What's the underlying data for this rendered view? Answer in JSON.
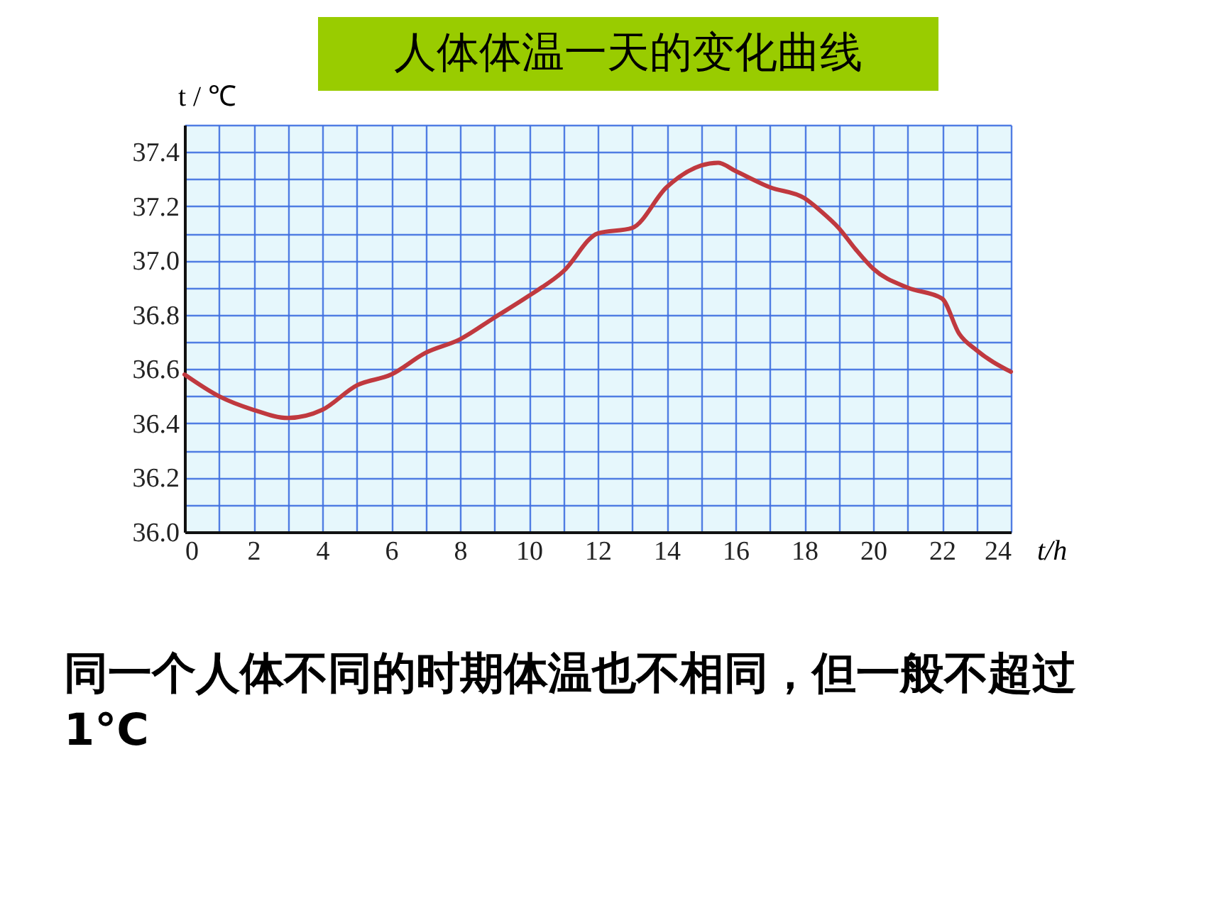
{
  "chart_data": {
    "type": "line",
    "title": "人体体温一天的变化曲线",
    "xlabel": "t/h",
    "ylabel": "t / ℃",
    "annotations": [
      "同一个人体不同的时期体温也不相同，但一般不超过1°C"
    ],
    "x": [
      0,
      1,
      2,
      3,
      4,
      5,
      6,
      7,
      8,
      9,
      10,
      11,
      12,
      13,
      14,
      15,
      15.5,
      16,
      17,
      18,
      18.5,
      19,
      19.5,
      20,
      21,
      22,
      22.5,
      23,
      24
    ],
    "series": [
      {
        "color": "#c0393f",
        "values": [
          36.58,
          36.5,
          36.45,
          36.42,
          36.45,
          36.54,
          36.58,
          36.66,
          36.71,
          36.79,
          36.87,
          36.96,
          37.1,
          37.12,
          37.27,
          37.35,
          37.36,
          37.33,
          37.27,
          37.23,
          37.18,
          37.12,
          37.04,
          36.97,
          36.9,
          36.86,
          36.73,
          36.67,
          36.59
        ]
      }
    ],
    "xlim": [
      0,
      24
    ],
    "xticks": [
      0,
      {
        "value": 1,
        "label": null
      },
      2,
      {
        "value": 3,
        "label": null
      },
      4,
      {
        "value": 5,
        "label": null
      },
      6,
      {
        "value": 7,
        "label": null
      },
      8,
      {
        "value": 9,
        "label": null
      },
      10,
      {
        "value": 11,
        "label": null
      },
      12,
      {
        "value": 13,
        "label": null
      },
      14,
      {
        "value": 15,
        "label": null
      },
      16,
      {
        "value": 17,
        "label": null
      },
      18,
      {
        "value": 19,
        "label": null
      },
      20,
      {
        "value": 21,
        "label": null
      },
      22,
      {
        "value": 23,
        "label": null
      },
      24
    ],
    "ylim": [
      36,
      37.5
    ],
    "yticks": [
      {
        "value": 36,
        "label": "36.0"
      },
      {
        "value": 36.1,
        "label": null
      },
      {
        "value": 36.2,
        "label": "36.2"
      },
      {
        "value": 36.3,
        "label": null
      },
      {
        "value": 36.4,
        "label": "36.4"
      },
      {
        "value": 36.5,
        "label": null
      },
      {
        "value": 36.6,
        "label": "36.6"
      },
      {
        "value": 36.7,
        "label": null
      },
      {
        "value": 36.8,
        "label": "36.8"
      },
      {
        "value": 36.9,
        "label": null
      },
      {
        "value": 37,
        "label": "37.0"
      },
      {
        "value": 37.1,
        "label": null
      },
      {
        "value": 37.2,
        "label": "37.2"
      },
      {
        "value": 37.3,
        "label": null
      },
      {
        "value": 37.4,
        "label": "37.4"
      },
      {
        "value": 37.5,
        "label": null
      }
    ],
    "grid": true
  }
}
